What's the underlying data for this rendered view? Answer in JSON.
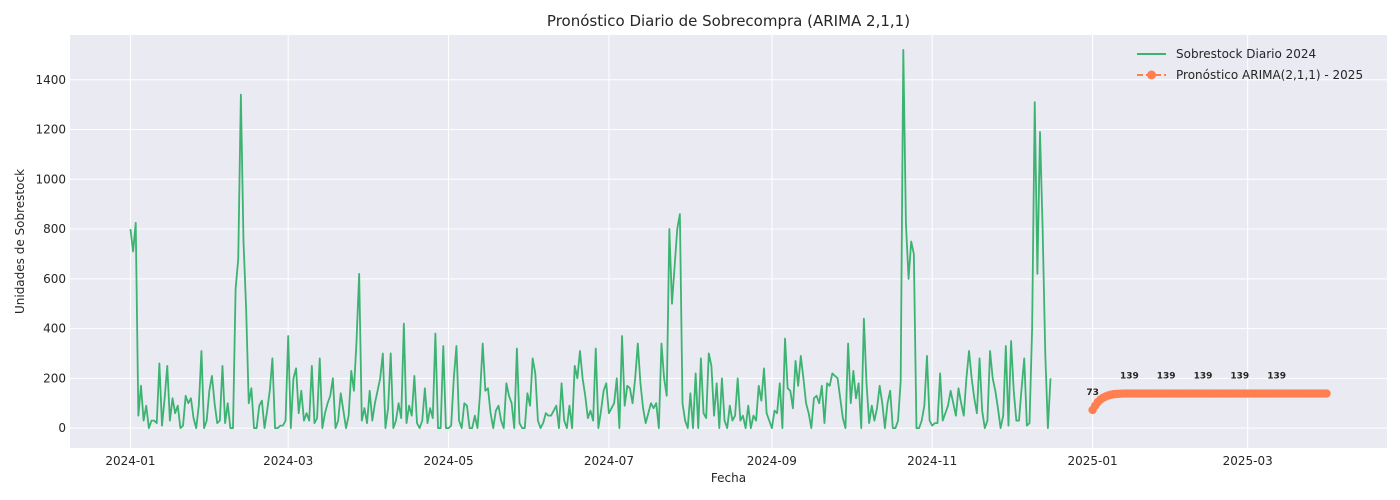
{
  "chart_data": {
    "type": "line",
    "title": "Pronóstico Diario de Sobrecompra (ARIMA 2,1,1)",
    "xlabel": "Fecha",
    "ylabel": "Unidades de Sobrestock",
    "x_range": [
      "2023-12-09",
      "2025-04-23"
    ],
    "ylim": [
      -80,
      1580
    ],
    "x_ticks": [
      "2024-01",
      "2024-03",
      "2024-05",
      "2024-07",
      "2024-09",
      "2024-11",
      "2025-01",
      "2025-03"
    ],
    "x_tick_dates": [
      "2024-01-01",
      "2024-03-01",
      "2024-05-01",
      "2024-07-01",
      "2024-09-01",
      "2024-11-01",
      "2025-01-01",
      "2025-03-01"
    ],
    "y_ticks": [
      0,
      200,
      400,
      600,
      800,
      1000,
      1200,
      1400
    ],
    "grid": true,
    "legend": "top-right",
    "series": [
      {
        "name": "Sobrestock Diario 2024",
        "color": "#3cb371",
        "start_date": "2024-01-01",
        "values": [
          800,
          710,
          825,
          50,
          170,
          30,
          90,
          0,
          30,
          30,
          20,
          260,
          10,
          120,
          250,
          30,
          120,
          60,
          90,
          0,
          10,
          130,
          100,
          120,
          40,
          0,
          90,
          310,
          0,
          30,
          150,
          210,
          100,
          20,
          30,
          250,
          20,
          100,
          0,
          0,
          560,
          680,
          1340,
          750,
          480,
          100,
          160,
          0,
          0,
          90,
          110,
          0,
          70,
          150,
          280,
          0,
          0,
          10,
          10,
          30,
          370,
          0,
          200,
          240,
          60,
          150,
          30,
          60,
          30,
          250,
          20,
          40,
          280,
          0,
          60,
          100,
          130,
          200,
          0,
          30,
          140,
          70,
          0,
          50,
          230,
          150,
          350,
          620,
          30,
          80,
          20,
          150,
          30,
          100,
          150,
          200,
          300,
          0,
          80,
          300,
          0,
          30,
          100,
          40,
          420,
          20,
          90,
          50,
          210,
          20,
          0,
          30,
          160,
          20,
          80,
          40,
          380,
          0,
          0,
          330,
          0,
          0,
          10,
          200,
          330,
          30,
          0,
          100,
          90,
          0,
          0,
          50,
          0,
          140,
          340,
          150,
          160,
          60,
          0,
          70,
          90,
          30,
          0,
          180,
          130,
          100,
          0,
          320,
          20,
          0,
          0,
          140,
          90,
          280,
          220,
          30,
          0,
          20,
          60,
          50,
          50,
          70,
          90,
          0,
          180,
          30,
          0,
          90,
          0,
          250,
          200,
          310,
          200,
          130,
          40,
          70,
          30,
          320,
          0,
          70,
          150,
          180,
          60,
          80,
          100,
          200,
          0,
          370,
          90,
          170,
          160,
          100,
          200,
          340,
          180,
          80,
          20,
          60,
          100,
          80,
          100,
          0,
          340,
          200,
          130,
          800,
          500,
          650,
          800,
          860,
          100,
          30,
          0,
          140,
          0,
          220,
          0,
          280,
          60,
          40,
          300,
          250,
          50,
          180,
          0,
          200,
          30,
          0,
          90,
          30,
          50,
          200,
          30,
          50,
          0,
          90,
          0,
          50,
          30,
          170,
          110,
          240,
          60,
          30,
          0,
          70,
          60,
          180,
          0,
          360,
          160,
          150,
          80,
          270,
          170,
          290,
          200,
          100,
          60,
          0,
          120,
          130,
          100,
          170,
          20,
          180,
          170,
          220,
          210,
          200,
          120,
          40,
          0,
          340,
          100,
          230,
          120,
          180,
          0,
          440,
          180,
          20,
          90,
          30,
          80,
          170,
          100,
          0,
          100,
          150,
          0,
          0,
          30,
          190,
          1520,
          820,
          600,
          750,
          700,
          0,
          0,
          30,
          90,
          290,
          30,
          10,
          20,
          20,
          220,
          30,
          60,
          90,
          150,
          100,
          50,
          160,
          100,
          50,
          200,
          310,
          200,
          120,
          60,
          280,
          70,
          0,
          30,
          310,
          200,
          150,
          80,
          0,
          50,
          330,
          10,
          350,
          150,
          30,
          30,
          160,
          280,
          10,
          20,
          400,
          1310,
          620,
          1190,
          800,
          300,
          0,
          200
        ]
      },
      {
        "name": "Pronóstico ARIMA(2,1,1) - 2025",
        "color": "#ff7f50",
        "start_date": "2025-01-01",
        "values": [
          73,
          90,
          105,
          115,
          122,
          127,
          131,
          134,
          136,
          137,
          138,
          138.5,
          139,
          139,
          139,
          139,
          139,
          139,
          139,
          139,
          139,
          139,
          139,
          139,
          139,
          139,
          139,
          139,
          139,
          139,
          139,
          139,
          139,
          139,
          139,
          139,
          139,
          139,
          139,
          139,
          139,
          139,
          139,
          139,
          139,
          139,
          139,
          139,
          139,
          139,
          139,
          139,
          139,
          139,
          139,
          139,
          139,
          139,
          139,
          139,
          139,
          139,
          139,
          139,
          139,
          139,
          139,
          139,
          139,
          139,
          139,
          139,
          139,
          139,
          139,
          139,
          139,
          139,
          139,
          139,
          139,
          139,
          139,
          139,
          139,
          139,
          139,
          139,
          139,
          139
        ],
        "data_labels": [
          {
            "index": 0,
            "text": "73"
          },
          {
            "index": 14,
            "text": "139"
          },
          {
            "index": 28,
            "text": "139"
          },
          {
            "index": 42,
            "text": "139"
          },
          {
            "index": 56,
            "text": "139"
          },
          {
            "index": 70,
            "text": "139"
          }
        ]
      }
    ]
  }
}
